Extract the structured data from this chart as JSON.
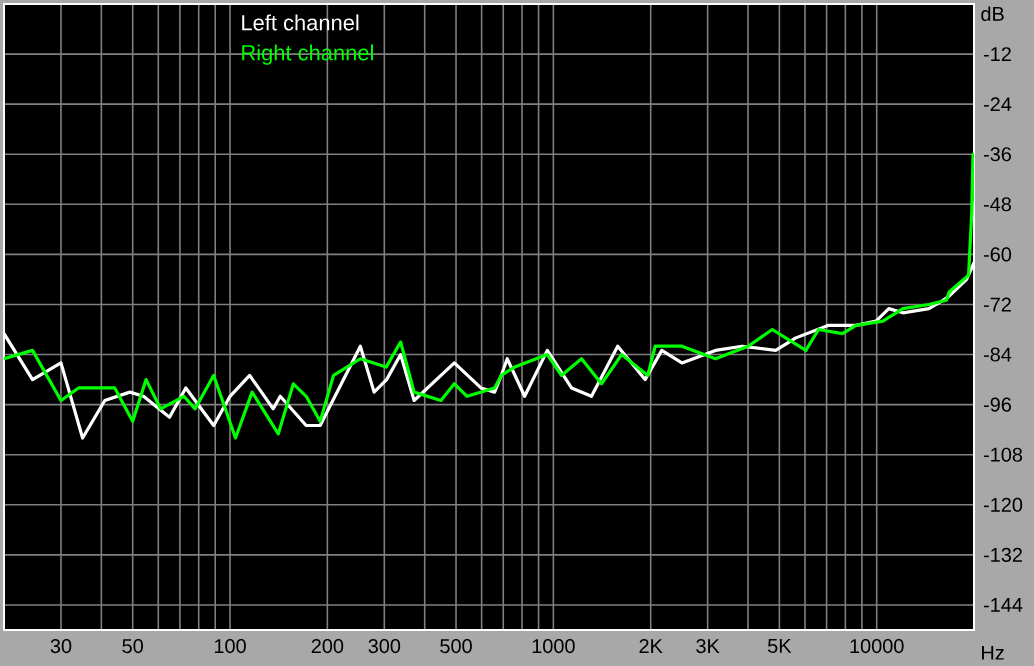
{
  "chart_data": {
    "type": "line",
    "xlabel": "Hz",
    "ylabel": "dB",
    "log": "x",
    "grid": true,
    "legend": "top left",
    "xlim": [
      20,
      20000
    ],
    "ylim": [
      -150,
      0
    ],
    "xticks": [
      {
        "value": 30,
        "label": "30"
      },
      {
        "value": 40,
        "label": null
      },
      {
        "value": 50,
        "label": "50"
      },
      {
        "value": 60,
        "label": null
      },
      {
        "value": 70,
        "label": null
      },
      {
        "value": 80,
        "label": null
      },
      {
        "value": 90,
        "label": null
      },
      {
        "value": 100,
        "label": "100"
      },
      {
        "value": 200,
        "label": "200"
      },
      {
        "value": 300,
        "label": "300"
      },
      {
        "value": 400,
        "label": null
      },
      {
        "value": 500,
        "label": "500"
      },
      {
        "value": 600,
        "label": null
      },
      {
        "value": 700,
        "label": null
      },
      {
        "value": 800,
        "label": null
      },
      {
        "value": 900,
        "label": null
      },
      {
        "value": 1000,
        "label": "1000"
      },
      {
        "value": 2000,
        "label": "2K"
      },
      {
        "value": 3000,
        "label": "3K"
      },
      {
        "value": 4000,
        "label": null
      },
      {
        "value": 5000,
        "label": "5K"
      },
      {
        "value": 6000,
        "label": null
      },
      {
        "value": 7000,
        "label": null
      },
      {
        "value": 8000,
        "label": null
      },
      {
        "value": 9000,
        "label": null
      },
      {
        "value": 10000,
        "label": "10000"
      }
    ],
    "yticks": [
      -12,
      -24,
      -36,
      -48,
      -60,
      -72,
      -84,
      -96,
      -108,
      -120,
      -132,
      -144
    ],
    "series": [
      {
        "name": "Left channel",
        "color": "#ffffff",
        "x": [
          20,
          24.5,
          30,
          35,
          41,
          49,
          54,
          65,
          73,
          89,
          100,
          115,
          136,
          143,
          172,
          190,
          253,
          279,
          305,
          337,
          371,
          494,
          597,
          658,
          690,
          720,
          815,
          958,
          1138,
          1312,
          1581,
          1922,
          2164,
          2498,
          3172,
          3837,
          4871,
          5623,
          7103,
          8630,
          9954,
          10900,
          12050,
          14500,
          16030,
          16750,
          18970,
          20000
        ],
        "values": [
          -79,
          -90,
          -86,
          -104,
          -95,
          -93,
          -94,
          -99,
          -92,
          -101,
          -94,
          -89,
          -97,
          -94,
          -101,
          -101,
          -82,
          -93,
          -90,
          -84,
          -95,
          -86,
          -92,
          -93,
          -89,
          -85,
          -94,
          -83,
          -92,
          -94,
          -82,
          -90,
          -83,
          -86,
          -83,
          -82,
          -83,
          -80,
          -77,
          -77,
          -76,
          -73,
          -74,
          -73,
          -71,
          -70,
          -66,
          -62
        ]
      },
      {
        "name": "Right channel",
        "color": "#00ff00",
        "x": [
          20,
          24.5,
          30,
          34,
          44,
          50,
          55,
          61,
          72,
          78,
          89,
          104,
          117,
          141,
          157,
          172,
          190,
          209,
          253,
          304,
          337,
          371,
          449,
          494,
          541,
          658,
          690,
          759,
          958,
          1059,
          1222,
          1409,
          1626,
          1959,
          2065,
          2498,
          3172,
          4003,
          4753,
          6039,
          6607,
          7839,
          8630,
          10450,
          12050,
          14500,
          16430,
          16750,
          19240,
          19680,
          19860,
          20000
        ],
        "values": [
          -85,
          -83,
          -95,
          -92,
          -92,
          -100,
          -90,
          -97,
          -94,
          -97,
          -89,
          -104,
          -93,
          -103,
          -91,
          -94,
          -100,
          -89,
          -85,
          -87,
          -81,
          -93,
          -95,
          -91,
          -94,
          -92,
          -89,
          -87,
          -84,
          -89,
          -85,
          -91,
          -84,
          -89,
          -82,
          -82,
          -85,
          -82,
          -78,
          -83,
          -78,
          -79,
          -77,
          -76,
          -73,
          -72,
          -71,
          -69,
          -65,
          -50,
          -36,
          -47
        ]
      }
    ]
  }
}
